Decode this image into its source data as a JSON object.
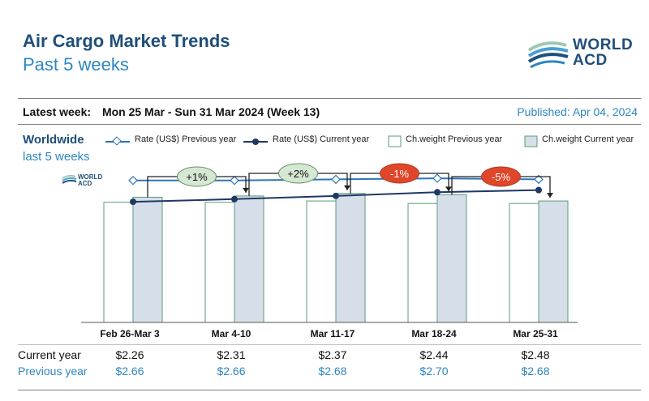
{
  "header": {
    "title": "Air Cargo Market Trends",
    "subtitle": "Past 5 weeks",
    "logo_text_line1": "WORLD",
    "logo_text_line2": "ACD"
  },
  "week_info": {
    "label": "Latest week:",
    "value": "Mon 25 Mar - Sun 31 Mar 2024 (Week 13)",
    "published": "Published: Apr 04, 2024"
  },
  "region": {
    "name": "Worldwide",
    "period": "last 5 weeks"
  },
  "legend": {
    "rate_prev": "Rate (US$) Previous year",
    "rate_cur": "Rate (US$) Current year",
    "cw_prev": "Ch.weight Previous year",
    "cw_cur": "Ch.weight Current year"
  },
  "table": {
    "current_label": "Current year",
    "previous_label": "Previous year",
    "current": [
      "$2.26",
      "$2.31",
      "$2.37",
      "$2.44",
      "$2.48"
    ],
    "previous": [
      "$2.66",
      "$2.66",
      "$2.68",
      "$2.70",
      "$2.68"
    ]
  },
  "colors": {
    "title": "#1f4e79",
    "accent": "#2e86c1",
    "bar_prev_fill": "#ffffff",
    "bar_cur_fill": "#d6dfe9",
    "bar_stroke": "#5b9b7a",
    "rate_cur": "#1f3864",
    "rate_prev": "#2e75b6",
    "badge_pos": "#d5e8d4",
    "badge_neg": "#e0462a"
  },
  "chart_data": {
    "type": "bar",
    "categories": [
      "Feb 26-Mar 3",
      "Mar 4-10",
      "Mar 11-17",
      "Mar 18-24",
      "Mar 25-31"
    ],
    "series": [
      {
        "name": "Ch.weight Previous year",
        "kind": "bar",
        "values": [
          0.96,
          0.96,
          0.97,
          0.95,
          0.95
        ]
      },
      {
        "name": "Ch.weight Current year",
        "kind": "bar",
        "values": [
          1.0,
          1.01,
          1.03,
          1.02,
          0.97
        ]
      },
      {
        "name": "Rate (US$) Previous year",
        "kind": "line",
        "values": [
          2.66,
          2.66,
          2.68,
          2.7,
          2.68
        ]
      },
      {
        "name": "Rate (US$) Current year",
        "kind": "line",
        "values": [
          2.26,
          2.31,
          2.37,
          2.44,
          2.48
        ]
      }
    ],
    "changes": [
      "+1%",
      "+2%",
      "-1%",
      "-5%"
    ],
    "bar_ylim": [
      0,
      1.1
    ],
    "rate_ylim": [
      0,
      3.4
    ]
  }
}
